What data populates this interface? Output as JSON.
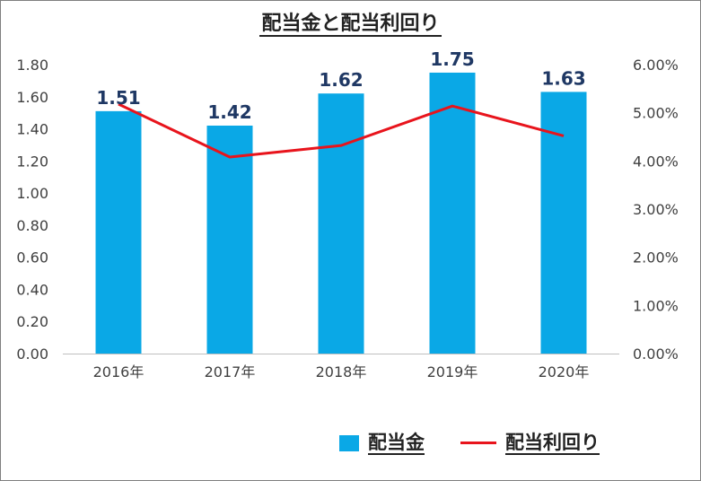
{
  "chart_data": {
    "type": "bar",
    "title": "配当金と配当利回り",
    "categories": [
      "2016年",
      "2017年",
      "2018年",
      "2019年",
      "2020年"
    ],
    "series": [
      {
        "name": "配当金",
        "type": "bar",
        "axis": "left",
        "values": [
          1.51,
          1.42,
          1.62,
          1.75,
          1.63
        ],
        "color": "#0aa8e6",
        "data_labels": [
          "1.51",
          "1.42",
          "1.62",
          "1.75",
          "1.63"
        ]
      },
      {
        "name": "配当利回り",
        "type": "line",
        "axis": "right",
        "values": [
          5.18,
          4.08,
          4.32,
          5.14,
          4.52
        ],
        "unit": "%",
        "color": "#e8141c"
      }
    ],
    "y_left": {
      "ylim": [
        0,
        1.8
      ],
      "ticks": [
        "0.00",
        "0.20",
        "0.40",
        "0.60",
        "0.80",
        "1.00",
        "1.20",
        "1.40",
        "1.60",
        "1.80"
      ]
    },
    "y_right": {
      "ylim": [
        0,
        6
      ],
      "ticks": [
        "0.00%",
        "1.00%",
        "2.00%",
        "3.00%",
        "4.00%",
        "5.00%",
        "6.00%"
      ]
    },
    "grid": false,
    "legend_position": "bottom-right",
    "data_label_color": "#1f3864"
  },
  "legend": {
    "bar_label": "配当金",
    "line_label": "配当利回り"
  }
}
